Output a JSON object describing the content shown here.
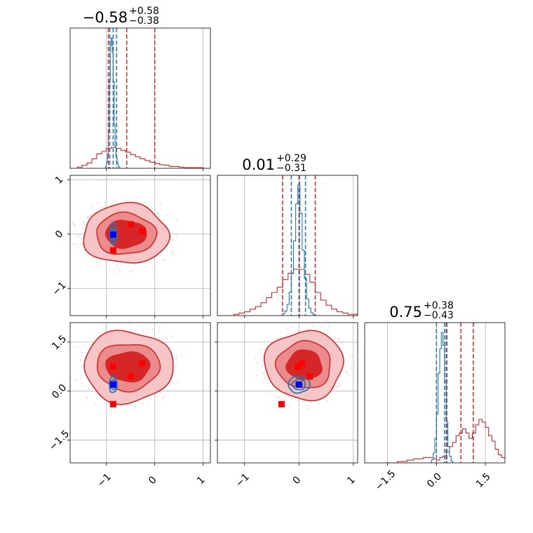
{
  "chart_data": {
    "type": "corner",
    "grid": true,
    "colors": {
      "red": "#d62728",
      "red_mid": "#eb8c8c",
      "red_light": "#f6c6c6",
      "blue": "#1f77b4",
      "blue_marker": "#0000ff",
      "red_marker": "#ff0000",
      "grid": "#b0b0b0"
    },
    "params": [
      {
        "key": "p0",
        "value": "−0.58",
        "plus": "+0.58",
        "minus": "−0.38",
        "range": [
          -1.75,
          1.15
        ],
        "ticks": [
          {
            "v": -1,
            "label": "−1"
          },
          {
            "v": 0,
            "label": "0"
          },
          {
            "v": 1,
            "label": "1"
          }
        ],
        "red_lines": [
          -0.96,
          -0.58,
          0.0
        ],
        "blue_lines": [
          -0.93,
          -0.86,
          -0.79
        ],
        "red_hist": {
          "start": -1.6,
          "step": 0.1,
          "counts": [
            2,
            5,
            9,
            16,
            24,
            28,
            33,
            35,
            33,
            30,
            27,
            23,
            19,
            16,
            13,
            10,
            8,
            6,
            5,
            3,
            3,
            2,
            1,
            1,
            1,
            1
          ]
        },
        "blue_hist": {
          "start": -1.04,
          "step": 0.02,
          "counts": [
            0,
            2,
            8,
            20,
            50,
            120,
            170,
            180,
            160,
            120,
            60,
            30,
            15,
            8,
            3,
            1,
            0
          ]
        }
      },
      {
        "key": "p1",
        "value": "0.01",
        "plus": "+0.29",
        "minus": "−0.31",
        "range": [
          -1.5,
          1.08
        ],
        "ticks": [
          {
            "v": -1,
            "label": "−1"
          },
          {
            "v": 0,
            "label": "0"
          },
          {
            "v": 1,
            "label": "1"
          }
        ],
        "red_lines": [
          -0.3,
          0.01,
          0.3
        ],
        "blue_lines": [
          -0.14,
          0.0,
          0.12
        ],
        "red_hist": {
          "start": -1.2,
          "step": 0.1,
          "counts": [
            1,
            2,
            3,
            5,
            7,
            10,
            14,
            18,
            22,
            28,
            33,
            36,
            36,
            32,
            26,
            18,
            12,
            8,
            5,
            3,
            2,
            1,
            1,
            1
          ]
        },
        "blue_hist": {
          "start": -0.34,
          "step": 0.04,
          "counts": [
            0,
            2,
            5,
            12,
            25,
            45,
            80,
            120,
            140,
            110,
            70,
            40,
            18,
            8,
            3,
            1,
            0
          ]
        }
      },
      {
        "key": "p2",
        "value": "0.75",
        "plus": "+0.38",
        "minus": "−0.43",
        "range": [
          -2.2,
          2.1
        ],
        "ticks": [
          {
            "v": -1.5,
            "label": "−1.5"
          },
          {
            "v": 0.0,
            "label": "0.0"
          },
          {
            "v": 1.5,
            "label": "1.5"
          }
        ],
        "red_lines": [
          0.32,
          0.75,
          1.13
        ],
        "blue_lines": [
          0.0,
          0.25,
          0.3
        ],
        "red_hist": {
          "start": -1.5,
          "step": 0.1,
          "counts": [
            0,
            0,
            0,
            1,
            1,
            1,
            2,
            2,
            3,
            3,
            3,
            4,
            4,
            4,
            3,
            2,
            4,
            5,
            8,
            12,
            15,
            20,
            22,
            25,
            22,
            18,
            22,
            28,
            32,
            30,
            26,
            20,
            16,
            10,
            6,
            4,
            3,
            2,
            1,
            1
          ]
        },
        "blue_hist": {
          "start": -0.2,
          "step": 0.05,
          "counts": [
            0,
            2,
            6,
            15,
            30,
            55,
            70,
            80,
            72,
            50,
            25,
            10,
            4,
            1,
            0
          ]
        }
      }
    ],
    "pairs": [
      {
        "x": "p0",
        "y": "p1",
        "red_center": [
          -0.6,
          0.0
        ],
        "red_radii": [
          [
            0.88,
            0.55
          ],
          [
            0.62,
            0.38
          ],
          [
            0.42,
            0.25
          ]
        ],
        "blue_center": [
          -0.86,
          0.0
        ],
        "blue_radii": [
          [
            0.07,
            0.2
          ],
          [
            0.04,
            0.12
          ],
          [
            0.025,
            0.06
          ]
        ],
        "red_markers": [
          [
            -0.5,
            0.18
          ],
          [
            -0.26,
            0.06
          ],
          [
            -0.86,
            -0.3
          ]
        ],
        "blue_marker": [
          -0.86,
          -0.01
        ]
      },
      {
        "x": "p0",
        "y": "p2",
        "red_center": [
          -0.55,
          0.75
        ],
        "red_radii": [
          [
            0.92,
            1.1
          ],
          [
            0.65,
            0.72
          ],
          [
            0.45,
            0.45
          ]
        ],
        "blue_center": [
          -0.86,
          0.2
        ],
        "blue_radii": [
          [
            0.08,
            0.25
          ],
          [
            0.05,
            0.15
          ],
          [
            0.03,
            0.08
          ]
        ],
        "red_markers": [
          [
            -0.86,
            0.75
          ],
          [
            -0.26,
            0.85
          ],
          [
            -0.5,
            0.45
          ],
          [
            -0.86,
            -0.4
          ]
        ],
        "blue_marker": [
          -0.86,
          0.2
        ]
      },
      {
        "x": "p1",
        "y": "p2",
        "red_center": [
          0.1,
          0.8
        ],
        "red_radii": [
          [
            0.72,
            1.05
          ],
          [
            0.5,
            0.72
          ],
          [
            0.32,
            0.45
          ]
        ],
        "blue_center": [
          0.0,
          0.2
        ],
        "blue_radii": [
          [
            0.2,
            0.25
          ],
          [
            0.12,
            0.16
          ],
          [
            0.06,
            0.08
          ]
        ],
        "red_markers": [
          [
            -0.02,
            0.75
          ],
          [
            0.06,
            0.85
          ],
          [
            0.2,
            0.45
          ],
          [
            -0.32,
            -0.4
          ]
        ],
        "blue_marker": [
          0.0,
          0.2
        ]
      }
    ]
  }
}
